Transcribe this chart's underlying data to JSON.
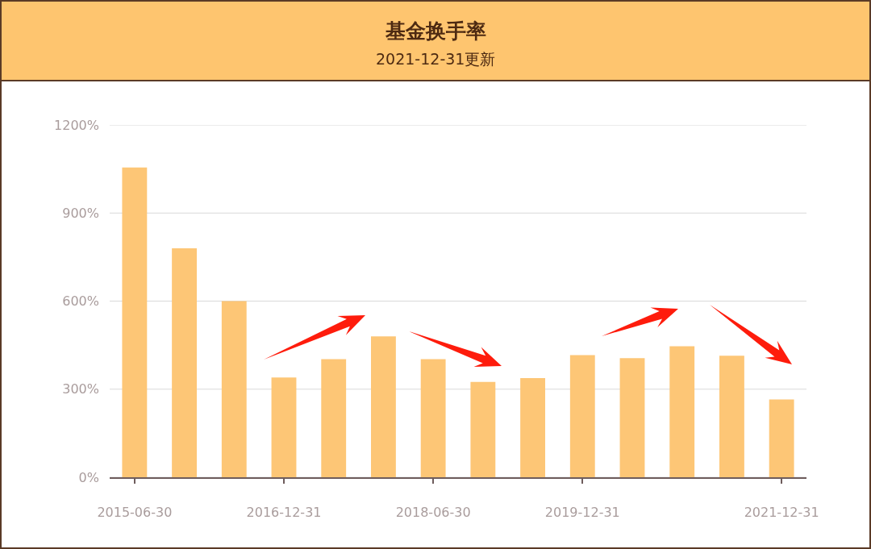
{
  "chart_data": {
    "type": "bar",
    "title": "基金换手率",
    "subtitle": "2021-12-31更新",
    "categories": [
      "2015-06-30",
      null,
      null,
      "2016-12-31",
      null,
      null,
      "2018-06-30",
      null,
      null,
      "2019-12-31",
      null,
      null,
      null,
      "2021-12-31"
    ],
    "values": [
      1055,
      780,
      600,
      340,
      402,
      480,
      402,
      325,
      338,
      416,
      406,
      446,
      414,
      265
    ],
    "color": "#fdc676",
    "ylim": [
      0,
      1200
    ],
    "yticks": [
      {
        "value": 0,
        "label": "0%"
      },
      {
        "value": 300,
        "label": "300%"
      },
      {
        "value": 600,
        "label": "600%"
      },
      {
        "value": 900,
        "label": "900%"
      },
      {
        "value": 1200,
        "label": "1200%"
      }
    ],
    "grid": "y"
  }
}
